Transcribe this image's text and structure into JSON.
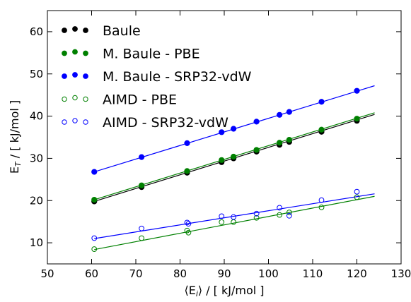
{
  "chart_data": {
    "type": "scatter",
    "xlabel_pre": "⟨E",
    "xlabel_sub": "i",
    "xlabel_post": "⟩ / [ kJ/mol ]",
    "ylabel_pre": "E",
    "ylabel_sub": "T",
    "ylabel_post": " / [ kJ/mol ]",
    "xlim": [
      50,
      130
    ],
    "ylim": [
      5,
      65
    ],
    "xticks": [
      50,
      60,
      70,
      80,
      90,
      100,
      110,
      120,
      130
    ],
    "yticks": [
      10,
      20,
      30,
      40,
      50,
      60
    ],
    "grid": false,
    "legend_position": "top-left",
    "series": [
      {
        "name": "Baule",
        "color": "#000000",
        "marker": "filled",
        "x": [
          60.6,
          71.3,
          81.6,
          89.4,
          92.1,
          97.3,
          102.5,
          104.7,
          112.0,
          120.0
        ],
        "y": [
          19.8,
          23.2,
          26.6,
          29.1,
          30.0,
          31.6,
          33.2,
          33.9,
          36.3,
          38.9
        ],
        "fit": {
          "x": [
            60.6,
            124.0
          ],
          "y": [
            19.8,
            40.4
          ]
        }
      },
      {
        "name": "M. Baule - PBE",
        "color": "#008000",
        "marker": "filled",
        "x": [
          60.6,
          71.3,
          81.6,
          89.4,
          92.1,
          97.3,
          102.5,
          104.7,
          112.0,
          120.0
        ],
        "y": [
          20.2,
          23.6,
          27.0,
          29.6,
          30.4,
          32.0,
          33.7,
          34.4,
          36.8,
          39.4
        ],
        "fit": {
          "x": [
            60.6,
            124.0
          ],
          "y": [
            20.2,
            40.8
          ]
        }
      },
      {
        "name": "M. Baule - SRP32-vdW",
        "color": "#0000ff",
        "marker": "filled",
        "x": [
          60.6,
          71.3,
          81.6,
          89.4,
          92.1,
          97.3,
          102.5,
          104.7,
          112.0,
          120.0
        ],
        "y": [
          26.8,
          30.3,
          33.6,
          36.2,
          37.0,
          38.7,
          40.3,
          41.0,
          43.4,
          46.0
        ],
        "fit": {
          "x": [
            60.6,
            124.0
          ],
          "y": [
            26.8,
            47.2
          ]
        }
      },
      {
        "name": "AIMD - PBE",
        "color": "#008000",
        "marker": "open",
        "x": [
          60.6,
          71.3,
          81.6,
          81.9,
          89.4,
          92.1,
          97.3,
          102.5,
          104.7,
          112.0,
          120.0
        ],
        "y": [
          8.5,
          11.1,
          12.9,
          12.4,
          14.9,
          14.9,
          15.9,
          16.6,
          17.2,
          18.4,
          20.8
        ],
        "fit": {
          "x": [
            60.6,
            124.0
          ],
          "y": [
            8.4,
            21.0
          ]
        }
      },
      {
        "name": "AIMD - SRP32-vdW",
        "color": "#0000ff",
        "marker": "open",
        "x": [
          60.6,
          71.3,
          81.6,
          81.9,
          89.4,
          92.1,
          97.3,
          102.5,
          104.7,
          112.0,
          120.0
        ],
        "y": [
          11.1,
          13.4,
          14.8,
          14.5,
          16.3,
          16.1,
          16.9,
          18.3,
          16.4,
          20.1,
          22.1
        ],
        "fit": {
          "x": [
            60.6,
            124.0
          ],
          "y": [
            11.0,
            21.6
          ]
        }
      }
    ]
  }
}
